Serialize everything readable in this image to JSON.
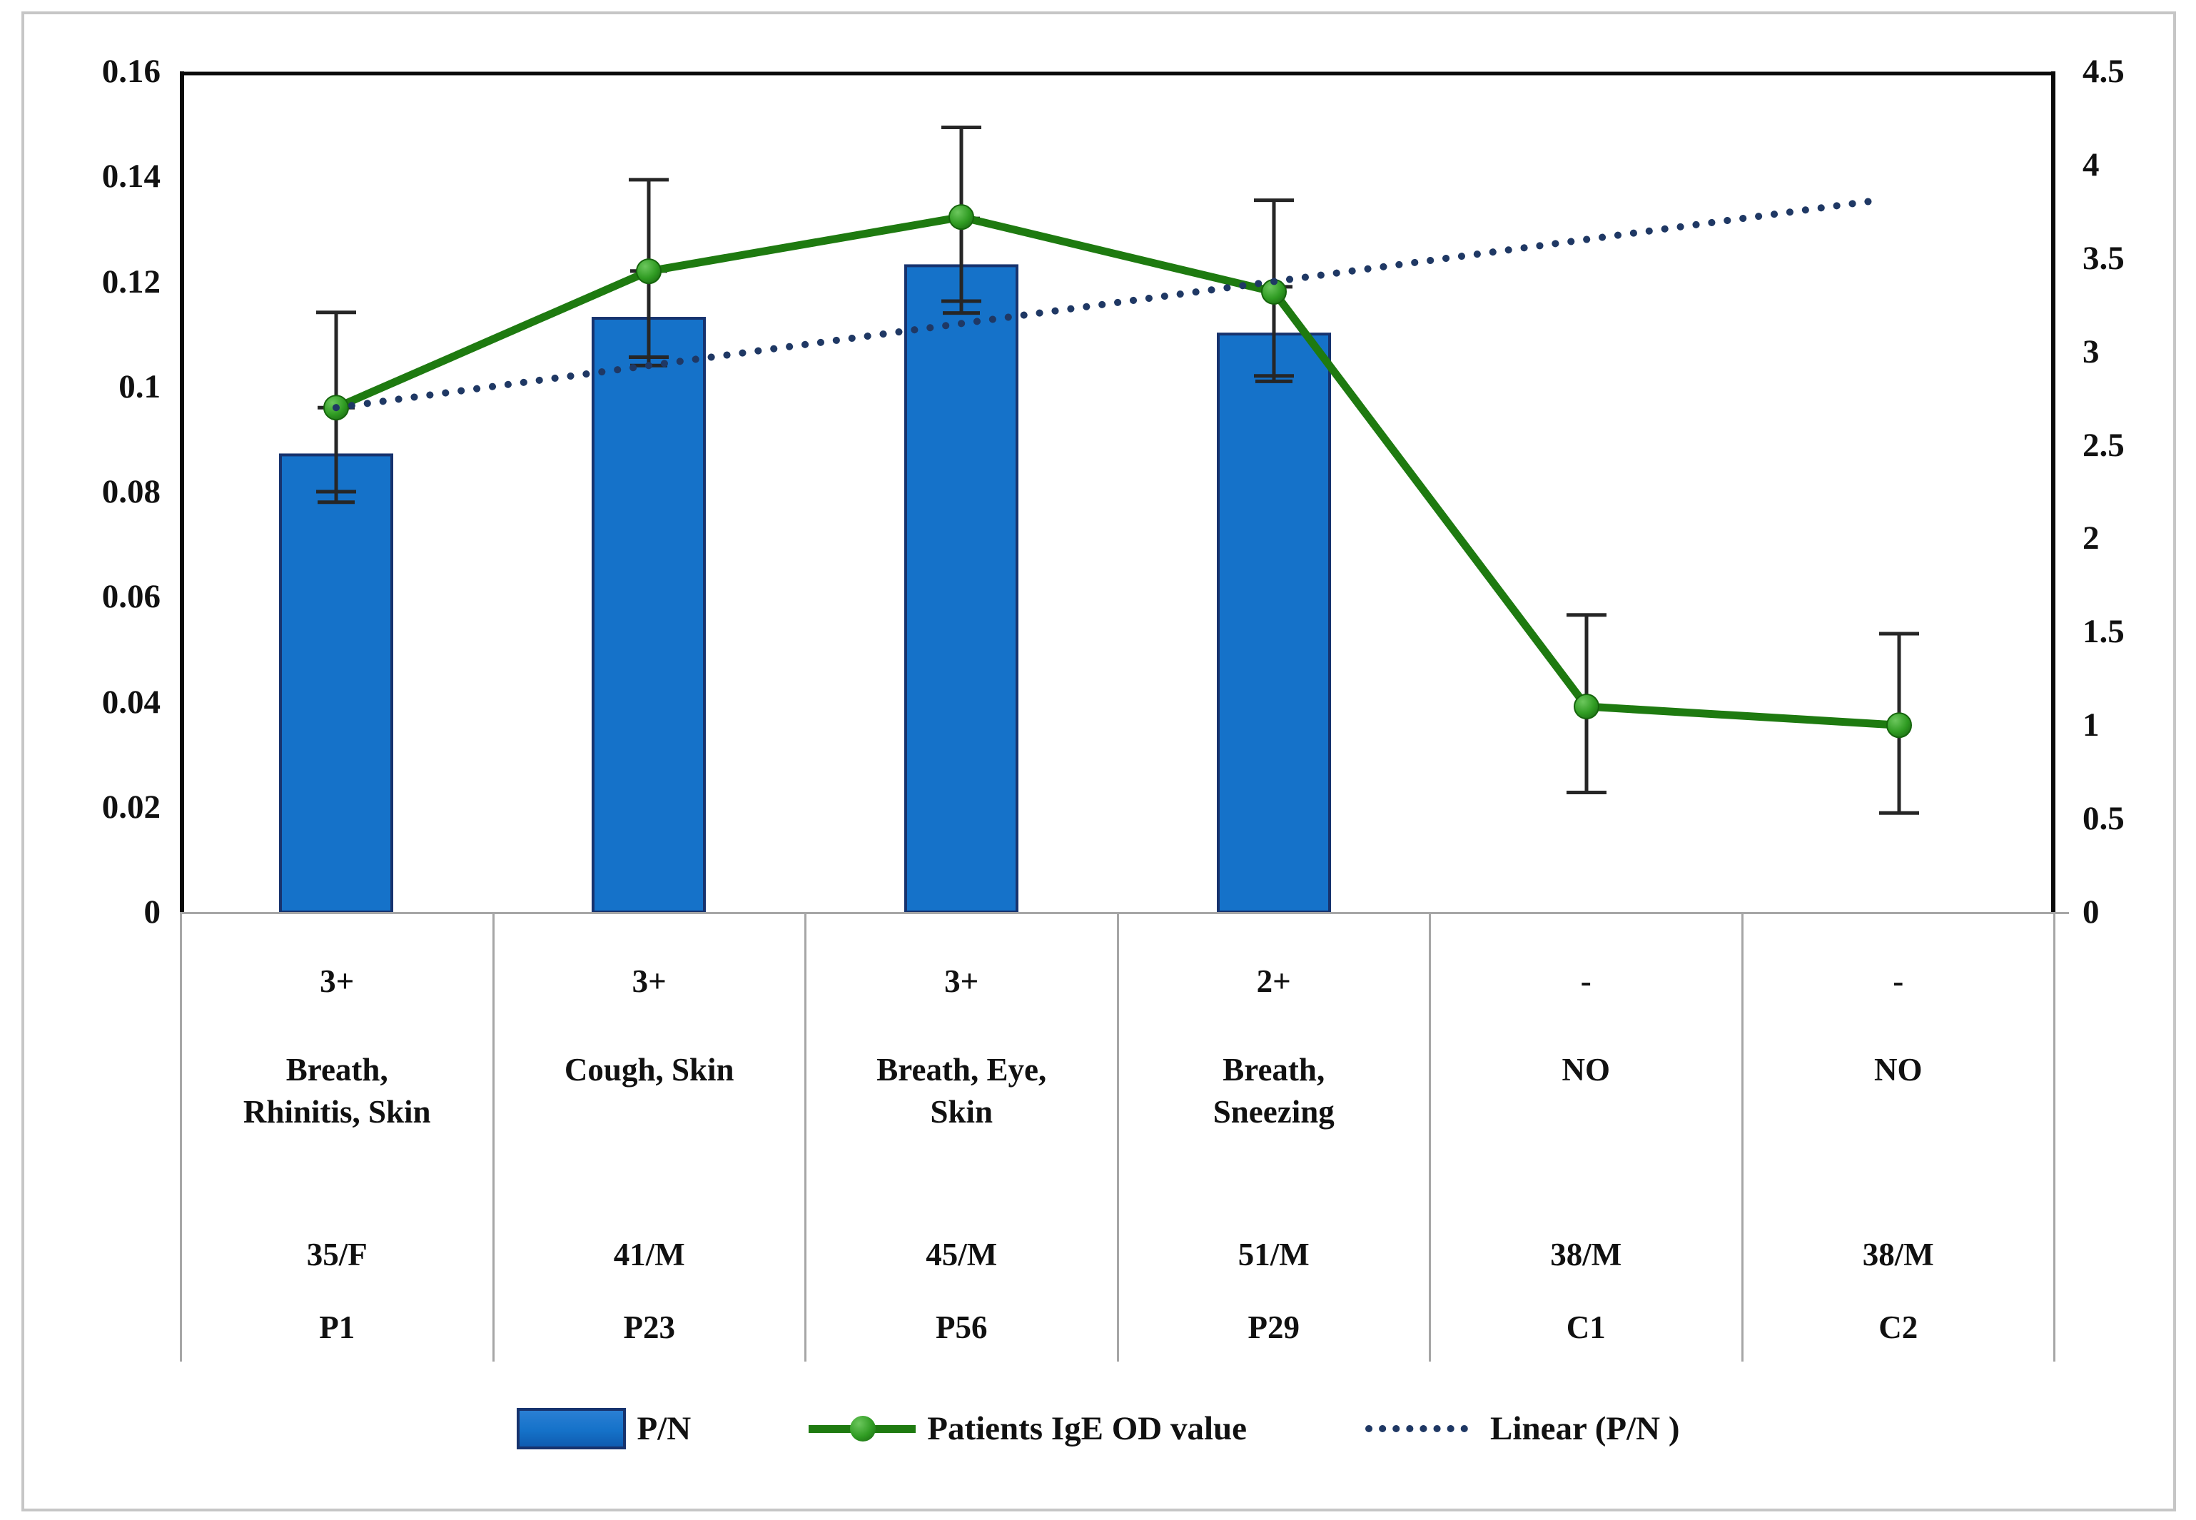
{
  "chart_data": {
    "type": "bar",
    "subtype": "combo-bar-line-with-trendline",
    "categories": [
      "P1",
      "P23",
      "P56",
      "P29",
      "C1",
      "C2"
    ],
    "series": [
      {
        "name": "P/N",
        "type": "bar",
        "axis": "left",
        "values": [
          0.087,
          0.113,
          0.123,
          0.11,
          null,
          null
        ],
        "error": [
          0.009,
          0.009,
          0.009,
          0.009,
          null,
          null
        ],
        "fill": "#1572c9",
        "stroke": "#17336e"
      },
      {
        "name": "Patients IgE OD value",
        "type": "line",
        "axis": "right",
        "values": [
          2.7,
          3.43,
          3.72,
          3.32,
          1.1,
          1.0
        ],
        "error_up": [
          0.51,
          0.49,
          0.48,
          0.49,
          0.49,
          0.49
        ],
        "error_down": [
          0.45,
          0.46,
          0.45,
          0.45,
          0.46,
          0.47
        ],
        "color": "#1e7a10",
        "marker_fill": "#2f9b22"
      },
      {
        "name": "Linear (P/N )",
        "type": "trendline",
        "axis": "left",
        "start_value": 0.096,
        "end_value": 0.1355,
        "start_x_frac": 0.0833,
        "end_x_frac": 0.906,
        "color": "#1f3864"
      }
    ],
    "left_axis": {
      "min": 0,
      "max": 0.16,
      "ticks": [
        "0.16",
        "0.14",
        "0.12",
        "0.1",
        "0.08",
        "0.06",
        "0.04",
        "0.02",
        "0"
      ]
    },
    "right_axis": {
      "min": 0,
      "max": 4.5,
      "ticks": [
        "4.5",
        "4",
        "3.5",
        "3",
        "2.5",
        "2",
        "1.5",
        "1",
        "0.5",
        "0"
      ]
    },
    "x_table": {
      "rows": [
        {
          "name": "skin-test-grade",
          "cells": [
            "3+",
            "3+",
            "3+",
            "2+",
            "-",
            "-"
          ]
        },
        {
          "name": "symptoms",
          "cells": [
            "Breath, Rhinitis, Skin",
            "Cough, Skin",
            "Breath, Eye, Skin",
            "Breath, Sneezing",
            "NO",
            "NO"
          ]
        },
        {
          "name": "age-sex",
          "cells": [
            "35/F",
            "41/M",
            "45/M",
            "51/M",
            "38/M",
            "38/M"
          ]
        },
        {
          "name": "subject-id",
          "cells": [
            "P1",
            "P23",
            "P56",
            "P29",
            "C1",
            "C2"
          ]
        }
      ]
    },
    "legend": {
      "position": "bottom",
      "items": [
        {
          "label": "P/N",
          "swatch": "bar"
        },
        {
          "label": "Patients IgE OD value",
          "swatch": "line-marker"
        },
        {
          "label": "Linear (P/N )",
          "swatch": "dotted-line"
        }
      ]
    },
    "grid": false,
    "colors": {
      "bar_fill": "#1572c9",
      "bar_border": "#17336e",
      "line_green": "#1e7a10",
      "marker_green": "#2f9b22",
      "trendline_navy": "#1f3864",
      "error_bar": "#262626",
      "table_grid": "#a6a6a6",
      "plot_border": "#0a0a0a"
    }
  }
}
